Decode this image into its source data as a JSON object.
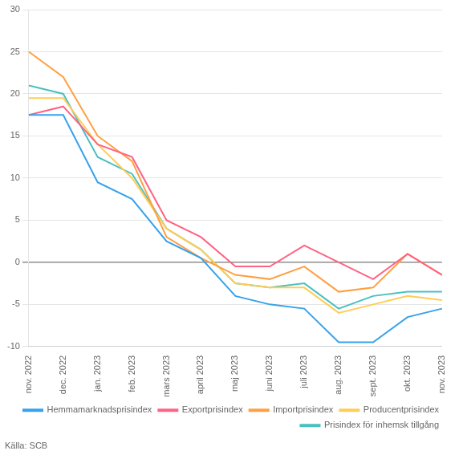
{
  "chart_data": {
    "type": "line",
    "categories": [
      "nov. 2022",
      "dec. 2022",
      "jan. 2023",
      "feb. 2023",
      "mars 2023",
      "april 2023",
      "maj 2023",
      "juni 2023",
      "juli 2023",
      "aug. 2023",
      "sept. 2023",
      "okt. 2023",
      "nov. 2023"
    ],
    "series": [
      {
        "name": "Hemmamarknadsprisindex",
        "values": [
          17.5,
          17.5,
          9.5,
          7.5,
          2.5,
          0.5,
          -4.0,
          -5.0,
          -5.5,
          -9.5,
          -9.5,
          -6.5,
          -5.5
        ]
      },
      {
        "name": "Exportprisindex",
        "values": [
          17.5,
          18.5,
          14.0,
          12.5,
          5.0,
          3.0,
          -0.5,
          -0.5,
          2.0,
          0.0,
          -2.0,
          1.0,
          -1.5
        ]
      },
      {
        "name": "Importprisindex",
        "values": [
          25.0,
          22.0,
          15.0,
          12.0,
          3.0,
          0.5,
          -1.5,
          -2.0,
          -0.5,
          -3.5,
          -3.0,
          1.0,
          -1.5
        ]
      },
      {
        "name": "Producentprisindex",
        "values": [
          19.5,
          19.5,
          14.0,
          10.0,
          4.0,
          1.5,
          -2.5,
          -3.0,
          -3.0,
          -6.0,
          -5.0,
          -4.0,
          -4.5
        ]
      },
      {
        "name": "Prisindex för inhemsk tillgång",
        "values": [
          21.0,
          20.0,
          12.5,
          10.5,
          4.0,
          1.5,
          -2.5,
          -3.0,
          -2.5,
          -5.5,
          -4.0,
          -3.5,
          -3.5
        ]
      }
    ],
    "ylim": [
      -10,
      30
    ],
    "yticks": [
      -10,
      -5,
      0,
      5,
      10,
      15,
      20,
      25,
      30
    ],
    "grid": true,
    "legend": "lower right",
    "annotations": [
      "Källa: SCB"
    ]
  }
}
